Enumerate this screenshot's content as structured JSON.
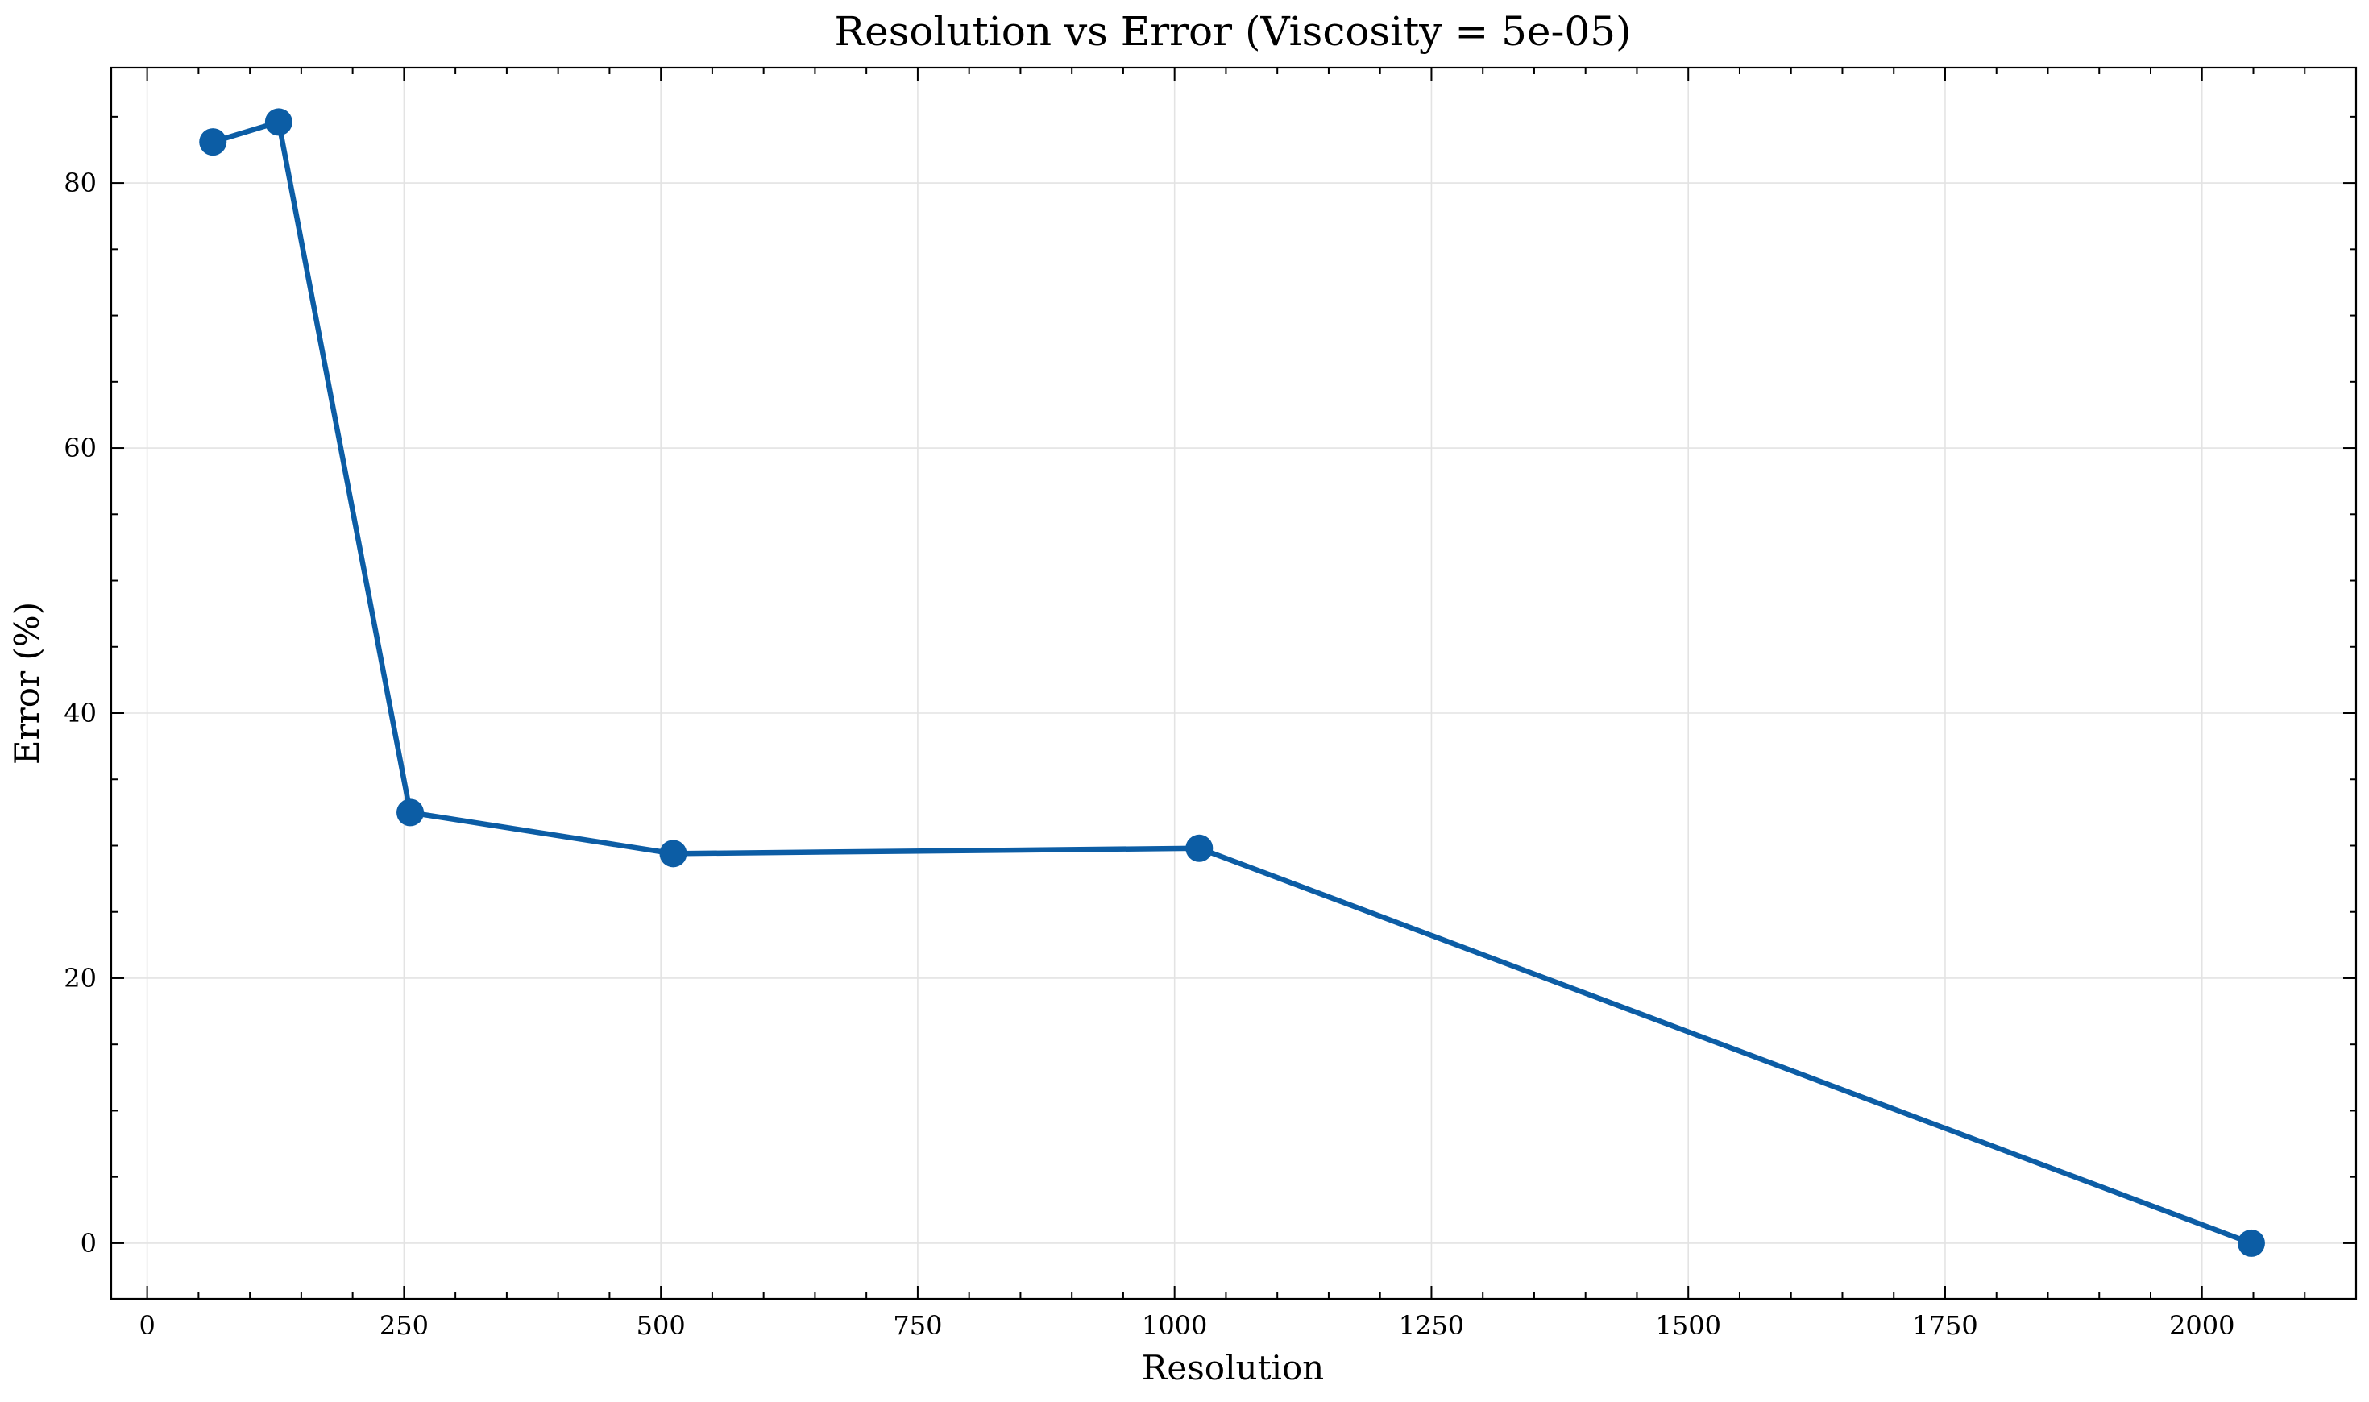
{
  "chart_data": {
    "type": "line",
    "title": "Resolution vs Error (Viscosity = 5e-05)",
    "xlabel": "Resolution",
    "ylabel": "Error (%)",
    "xlim": [
      -35,
      2150
    ],
    "ylim": [
      -4.2,
      88.7
    ],
    "xticks": [
      0,
      250,
      500,
      750,
      1000,
      1250,
      1500,
      1750,
      2000
    ],
    "yticks": [
      0,
      20,
      40,
      60,
      80
    ],
    "grid": true,
    "legend": "none",
    "series": [
      {
        "color": "#0c5da5",
        "x": [
          64,
          128,
          256,
          512,
          1024,
          2048
        ],
        "y": [
          83.1,
          84.6,
          32.5,
          29.4,
          29.8,
          0.0
        ]
      }
    ]
  }
}
